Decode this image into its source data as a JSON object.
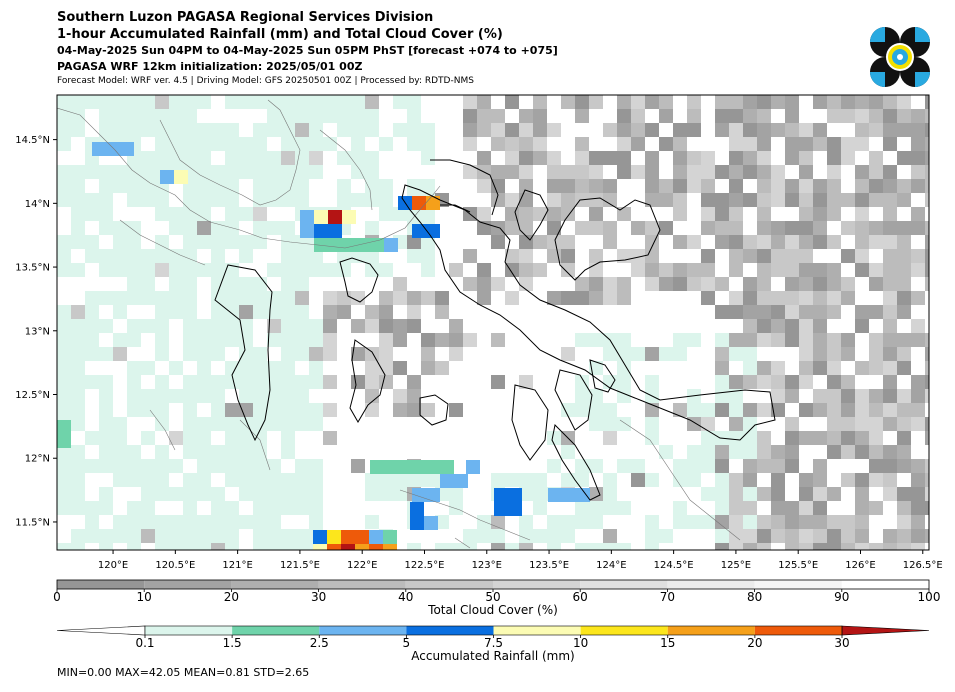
{
  "titles": {
    "line1": "Southern Luzon PAGASA Regional Services Division",
    "line2": "1-hour Accumulated Rainfall (mm) and Total Cloud Cover (%)",
    "line3": "04-May-2025 Sun 04PM to 04-May-2025 Sun 05PM PhST [forecast +074 to +075]",
    "line4": "PAGASA WRF 12km initialization: 2025/05/01 00Z",
    "line5": "Forecast Model: WRF ver. 4.5 | Driving Model: GFS 20250501 00Z | Processed by: RDTD-NMS"
  },
  "map": {
    "lon_range": [
      119.55,
      126.55
    ],
    "lat_range": [
      11.28,
      14.85
    ],
    "lon_ticks": [
      "120°E",
      "120.5°E",
      "121°E",
      "121.5°E",
      "122°E",
      "122.5°E",
      "123°E",
      "123.5°E",
      "124°E",
      "124.5°E",
      "125°E",
      "125.5°E",
      "126°E",
      "126.5°E"
    ],
    "lat_ticks": [
      "14.5°N",
      "14°N",
      "13.5°N",
      "13°N",
      "12.5°N",
      "12°N",
      "11.5°N"
    ]
  },
  "cloud_colorbar": {
    "label": "Total Cloud Cover (%)",
    "ticks": [
      "0",
      "10",
      "20",
      "30",
      "40",
      "50",
      "60",
      "70",
      "80",
      "90",
      "100"
    ],
    "colors": [
      "#969696",
      "#a3a3a3",
      "#afafaf",
      "#bcbcbc",
      "#c8c8c8",
      "#d4d4d4",
      "#e0e0e0",
      "#ebebeb",
      "#f5f5f5",
      "#ffffff"
    ]
  },
  "rain_colorbar": {
    "label": "Accumulated Rainfall (mm)",
    "ticks": [
      "0.1",
      "1.5",
      "2.5",
      "5",
      "7.5",
      "10",
      "15",
      "20",
      "30"
    ],
    "colors": [
      "#dcf5ec",
      "#6fd3aa",
      "#6cb4f0",
      "#0a6fe0",
      "#fcfcb4",
      "#fce61c",
      "#f5a01a",
      "#ee5a0a",
      "#b41414"
    ]
  },
  "stats": {
    "text": "MIN=0.00   MAX=42.05   MEAN=0.81   STD=2.65"
  },
  "logo": {
    "name": "PAGASA seal",
    "colors": [
      "#111111",
      "#29a9e0",
      "#f5e000"
    ]
  }
}
